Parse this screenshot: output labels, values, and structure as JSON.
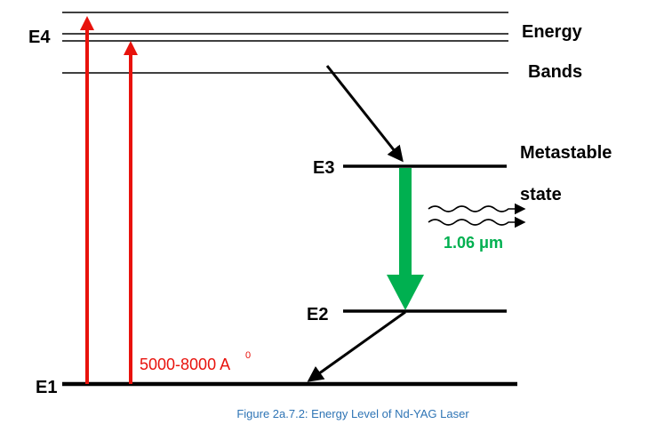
{
  "levels": {
    "e4": "E4",
    "e3": "E3",
    "e2": "E2",
    "e1": "E1"
  },
  "band_label": {
    "line1": "Energy",
    "line2": "Bands"
  },
  "metastable_label": {
    "line1": "Metastable",
    "line2": "state"
  },
  "emission_wavelength": "1.06 μm",
  "pump_wavelength": "5000-8000 A",
  "pump_wavelength_superscript": "0",
  "caption": "Figure 2a.7.2: Energy Level of Nd-YAG Laser",
  "colors": {
    "pump": "#e8120c",
    "laser": "#00b050",
    "caption": "#2e74b5",
    "line": "#000000"
  }
}
